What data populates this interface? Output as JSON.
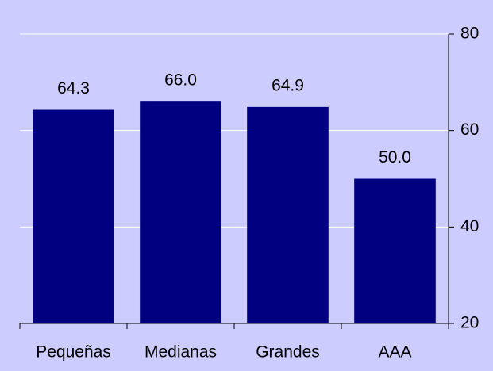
{
  "chart_data": {
    "type": "bar",
    "categories": [
      "Pequeñas",
      "Medianas",
      "Grandes",
      "AAA"
    ],
    "values": [
      64.3,
      66.0,
      64.9,
      50.0
    ],
    "value_labels": [
      "64.3",
      "66.0",
      "64.9",
      "50.0"
    ],
    "color": "#000080",
    "ylim": [
      20,
      80
    ],
    "yticks": [
      20,
      40,
      60,
      80
    ],
    "grid": true
  }
}
